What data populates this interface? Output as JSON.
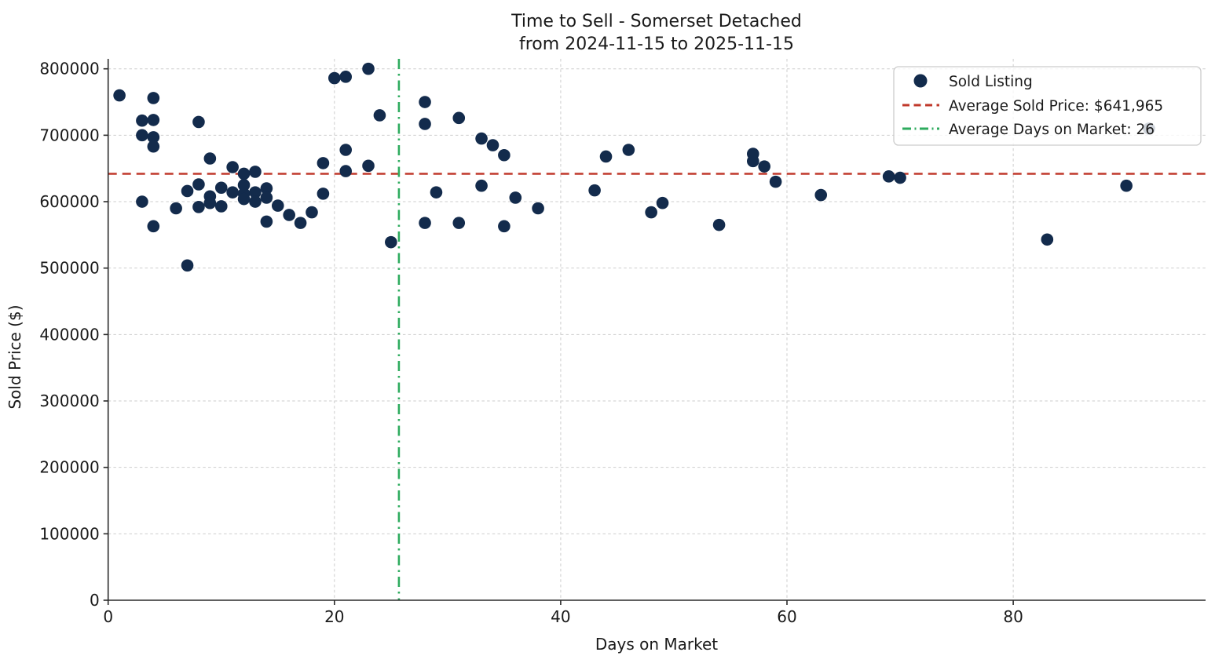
{
  "title": {
    "line1": "Time to Sell - Somerset Detached",
    "line2": "from 2024-11-15 to 2025-11-15"
  },
  "chart_data": {
    "type": "scatter",
    "title": "Time to Sell - Somerset Detached\nfrom 2024-11-15 to 2025-11-15",
    "xlabel": "Days on Market",
    "ylabel": "Sold Price ($)",
    "xlim": [
      0,
      97
    ],
    "ylim": [
      0,
      815000
    ],
    "x_ticks": [
      0,
      20,
      40,
      60,
      80
    ],
    "y_ticks": [
      0,
      100000,
      200000,
      300000,
      400000,
      500000,
      600000,
      700000,
      800000
    ],
    "grid": true,
    "grid_style": "dashed",
    "legend_position": "upper right",
    "series": [
      {
        "name": "Sold Listing",
        "marker": "circle",
        "color": "#132b4c",
        "points": [
          [
            1,
            760000
          ],
          [
            3,
            722000
          ],
          [
            3,
            700000
          ],
          [
            3,
            600000
          ],
          [
            4,
            756000
          ],
          [
            4,
            723000
          ],
          [
            4,
            697000
          ],
          [
            4,
            683000
          ],
          [
            4,
            563000
          ],
          [
            6,
            590000
          ],
          [
            7,
            616000
          ],
          [
            7,
            504000
          ],
          [
            8,
            720000
          ],
          [
            8,
            626000
          ],
          [
            8,
            592000
          ],
          [
            9,
            665000
          ],
          [
            9,
            608000
          ],
          [
            9,
            598000
          ],
          [
            10,
            621000
          ],
          [
            10,
            593000
          ],
          [
            11,
            652000
          ],
          [
            11,
            614000
          ],
          [
            12,
            642000
          ],
          [
            12,
            625000
          ],
          [
            12,
            612000
          ],
          [
            12,
            604000
          ],
          [
            13,
            645000
          ],
          [
            13,
            614000
          ],
          [
            13,
            600000
          ],
          [
            14,
            620000
          ],
          [
            14,
            606000
          ],
          [
            14,
            570000
          ],
          [
            15,
            594000
          ],
          [
            16,
            580000
          ],
          [
            17,
            568000
          ],
          [
            18,
            584000
          ],
          [
            19,
            658000
          ],
          [
            19,
            612000
          ],
          [
            20,
            786000
          ],
          [
            21,
            788000
          ],
          [
            21,
            678000
          ],
          [
            21,
            646000
          ],
          [
            23,
            800000
          ],
          [
            23,
            654000
          ],
          [
            24,
            730000
          ],
          [
            25,
            539000
          ],
          [
            28,
            750000
          ],
          [
            28,
            717000
          ],
          [
            28,
            568000
          ],
          [
            29,
            614000
          ],
          [
            31,
            726000
          ],
          [
            31,
            568000
          ],
          [
            33,
            695000
          ],
          [
            33,
            624000
          ],
          [
            34,
            685000
          ],
          [
            35,
            670000
          ],
          [
            35,
            563000
          ],
          [
            36,
            606000
          ],
          [
            38,
            590000
          ],
          [
            43,
            617000
          ],
          [
            44,
            668000
          ],
          [
            46,
            678000
          ],
          [
            48,
            584000
          ],
          [
            49,
            598000
          ],
          [
            54,
            565000
          ],
          [
            57,
            672000
          ],
          [
            57,
            661000
          ],
          [
            58,
            653000
          ],
          [
            59,
            630000
          ],
          [
            63,
            610000
          ],
          [
            69,
            638000
          ],
          [
            70,
            636000
          ],
          [
            83,
            543000
          ],
          [
            90,
            624000
          ],
          [
            92,
            710000
          ]
        ]
      }
    ],
    "reference_lines": [
      {
        "name": "average-sold-price",
        "axis": "y",
        "value": 641965,
        "line_value": 641965,
        "label": "Average Sold Price: $641,965",
        "style": "dashed",
        "color": "#c0392b"
      },
      {
        "name": "average-days-on-market",
        "axis": "x",
        "value": 26,
        "line_value": 25.7,
        "label": "Average Days on Market: 26",
        "style": "dashdot",
        "color": "#2eab5e"
      }
    ],
    "legend": {
      "items": [
        {
          "label": "Sold Listing",
          "marker": "circle",
          "color": "#132b4c"
        },
        {
          "label": "Average Sold Price: $641,965",
          "marker": "dashed-line",
          "color": "#c0392b"
        },
        {
          "label": "Average Days on Market: 26",
          "marker": "dashdot-line",
          "color": "#2eab5e"
        }
      ]
    },
    "colors": {
      "scatter": "#132b4c",
      "avg_price_line": "#c0392b",
      "avg_days_line": "#2eab5e",
      "grid": "#cdcdcd",
      "spine": "#2b2b2b",
      "legend_border": "#cccccc",
      "background": "#ffffff"
    }
  }
}
